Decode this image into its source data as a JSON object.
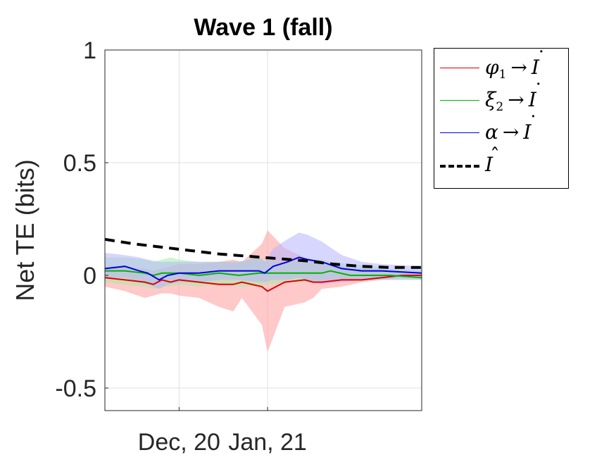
{
  "chart_data": {
    "type": "line",
    "title": "Wave 1 (fall)",
    "ylabel": "Net TE (bits)",
    "xlabel": "",
    "ylim": [
      -0.6,
      1
    ],
    "yticks": [
      -0.5,
      0,
      0.5,
      1
    ],
    "ytick_labels": [
      "-0.5",
      "0",
      "0.5",
      "1"
    ],
    "xlim": [
      "2020-11-05",
      "2021-02-24"
    ],
    "xticks": [
      "2020-12-01",
      "2021-01-01"
    ],
    "xtick_labels": [
      "Dec, 20",
      "Jan, 21"
    ],
    "grid": true,
    "legend_position": "outside-top-right",
    "series": [
      {
        "name": "φ1 → İ",
        "legend_base": "φ",
        "legend_sub": "1",
        "target": "I",
        "target_mark": "dot",
        "color": "#e00000",
        "band_color": "#ff9c9c",
        "style": "solid",
        "x": [
          "2020-11-05",
          "2020-11-12",
          "2020-11-19",
          "2020-11-22",
          "2020-11-25",
          "2020-11-28",
          "2020-12-01",
          "2020-12-08",
          "2020-12-15",
          "2020-12-20",
          "2020-12-23",
          "2020-12-30",
          "2021-01-01",
          "2021-01-07",
          "2021-01-14",
          "2021-01-17",
          "2021-01-20",
          "2021-01-27",
          "2021-02-03",
          "2021-02-10",
          "2021-02-17",
          "2021-02-24"
        ],
        "y": [
          -0.01,
          -0.02,
          -0.03,
          -0.04,
          -0.02,
          -0.03,
          -0.02,
          -0.03,
          -0.04,
          -0.04,
          -0.03,
          -0.05,
          -0.07,
          -0.03,
          -0.02,
          -0.03,
          -0.03,
          -0.02,
          -0.02,
          -0.01,
          0.0,
          0.0
        ],
        "upper": [
          0.04,
          0.04,
          0.03,
          0.02,
          0.03,
          0.04,
          0.05,
          0.05,
          0.06,
          0.07,
          0.06,
          0.14,
          0.2,
          0.12,
          0.08,
          0.07,
          0.05,
          0.04,
          0.03,
          0.02,
          0.02,
          0.01
        ],
        "lower": [
          -0.05,
          -0.07,
          -0.1,
          -0.09,
          -0.08,
          -0.08,
          -0.09,
          -0.1,
          -0.14,
          -0.16,
          -0.1,
          -0.22,
          -0.34,
          -0.14,
          -0.12,
          -0.1,
          -0.06,
          -0.05,
          -0.03,
          -0.02,
          -0.01,
          -0.01
        ]
      },
      {
        "name": "ξ2 → İ",
        "legend_base": "ξ",
        "legend_sub": "2",
        "target": "I",
        "target_mark": "dot",
        "color": "#00b400",
        "band_color": "#a4eca4",
        "style": "solid",
        "x": [
          "2020-11-05",
          "2020-11-12",
          "2020-11-19",
          "2020-11-22",
          "2020-11-25",
          "2020-11-28",
          "2020-12-01",
          "2020-12-08",
          "2020-12-15",
          "2020-12-22",
          "2020-12-29",
          "2021-01-01",
          "2021-01-08",
          "2021-01-15",
          "2021-01-20",
          "2021-01-23",
          "2021-01-30",
          "2021-02-06",
          "2021-02-13",
          "2021-02-24"
        ],
        "y": [
          0.02,
          0.02,
          0.01,
          0.0,
          0.01,
          0.01,
          0.01,
          0.0,
          0.01,
          0.0,
          0.01,
          0.01,
          0.01,
          0.01,
          0.01,
          0.02,
          0.0,
          0.0,
          0.0,
          -0.01
        ],
        "upper": [
          0.08,
          0.08,
          0.07,
          0.06,
          0.07,
          0.08,
          0.07,
          0.06,
          0.06,
          0.06,
          0.08,
          0.06,
          0.06,
          0.07,
          0.07,
          0.06,
          0.05,
          0.04,
          0.03,
          0.02
        ],
        "lower": [
          -0.03,
          -0.04,
          -0.05,
          -0.06,
          -0.05,
          -0.05,
          -0.04,
          -0.05,
          -0.04,
          -0.05,
          -0.05,
          -0.04,
          -0.03,
          -0.03,
          -0.02,
          -0.02,
          -0.02,
          -0.02,
          -0.02,
          -0.02
        ]
      },
      {
        "name": "α → İ",
        "legend_base": "α",
        "legend_sub": "",
        "target": "I",
        "target_mark": "dot",
        "color": "#0000e0",
        "band_color": "#b4b4ff",
        "style": "solid",
        "x": [
          "2020-11-05",
          "2020-11-12",
          "2020-11-17",
          "2020-11-20",
          "2020-11-24",
          "2020-11-27",
          "2020-12-01",
          "2020-12-08",
          "2020-12-15",
          "2020-12-22",
          "2020-12-29",
          "2020-12-31",
          "2021-01-03",
          "2021-01-08",
          "2021-01-12",
          "2021-01-15",
          "2021-01-20",
          "2021-01-27",
          "2021-02-03",
          "2021-02-10",
          "2021-02-24"
        ],
        "y": [
          0.03,
          0.04,
          0.02,
          0.01,
          -0.02,
          0.0,
          0.01,
          0.01,
          0.02,
          0.02,
          0.02,
          0.01,
          0.04,
          0.06,
          0.08,
          0.07,
          0.06,
          0.03,
          0.02,
          0.02,
          0.01
        ],
        "upper": [
          0.1,
          0.09,
          0.08,
          0.07,
          0.06,
          0.06,
          0.06,
          0.06,
          0.06,
          0.06,
          0.08,
          0.06,
          0.12,
          0.16,
          0.19,
          0.18,
          0.15,
          0.09,
          0.06,
          0.05,
          0.04
        ],
        "lower": [
          -0.01,
          -0.01,
          -0.03,
          -0.04,
          -0.06,
          -0.04,
          -0.03,
          -0.03,
          -0.02,
          -0.02,
          -0.03,
          -0.03,
          -0.02,
          -0.02,
          -0.01,
          -0.02,
          -0.04,
          -0.03,
          -0.02,
          -0.02,
          -0.02
        ]
      },
      {
        "name": "Î",
        "legend_base": "I",
        "legend_sub": "",
        "target": "",
        "target_mark": "hat",
        "color": "#000000",
        "style": "dashed",
        "x": [
          "2020-11-05",
          "2020-11-15",
          "2020-11-25",
          "2020-12-05",
          "2020-12-15",
          "2020-12-25",
          "2021-01-04",
          "2021-01-14",
          "2021-01-24",
          "2021-02-03",
          "2021-02-13",
          "2021-02-24"
        ],
        "y": [
          0.16,
          0.14,
          0.125,
          0.11,
          0.095,
          0.085,
          0.075,
          0.065,
          0.05,
          0.04,
          0.035,
          0.035
        ]
      }
    ]
  }
}
